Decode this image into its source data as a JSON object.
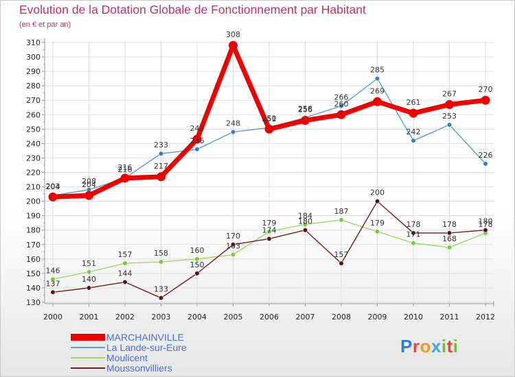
{
  "page": {
    "title": "Evolution de la Dotation Globale de Fonctionnement par Habitant",
    "subtitle": "(en € et par an)"
  },
  "logo": {
    "text": "Proxiti",
    "letter_colors": [
      "#2a7fd4",
      "#e8482f",
      "#f29a1b",
      "#3aa8e0",
      "#79b83a",
      "#e8482f",
      "#79b83a"
    ]
  },
  "chart_data": {
    "type": "line",
    "title": "Evolution de la Dotation Globale de Fonctionnement par Habitant",
    "subtitle": "(en € et par an)",
    "xlabel": "",
    "ylabel": "",
    "x": [
      "2000",
      "2001",
      "2002",
      "2003",
      "2004",
      "2005",
      "2006",
      "2007",
      "2008",
      "2009",
      "2010",
      "2011",
      "2012"
    ],
    "ylim": [
      130,
      310
    ],
    "yticks": [
      130,
      140,
      150,
      160,
      170,
      180,
      190,
      200,
      210,
      220,
      230,
      240,
      250,
      260,
      270,
      280,
      290,
      300,
      310
    ],
    "legend_position": "bottom-left",
    "series": [
      {
        "name": "La Lande-sur-Eure",
        "color": "#5b9bd5",
        "marker": "#2f7ec4",
        "weight": "thin",
        "values": [
          204,
          208,
          216,
          233,
          236,
          248,
          251,
          258,
          266,
          285,
          242,
          253,
          226
        ]
      },
      {
        "name": "Moulicent",
        "color": "#99db66",
        "marker": "#77c93b",
        "weight": "thin",
        "values": [
          146,
          151,
          157,
          158,
          160,
          163,
          179,
          184,
          187,
          179,
          171,
          168,
          178
        ]
      },
      {
        "name": "Moussonvilliers",
        "color": "#6e1e1e",
        "marker": "#5a1010",
        "weight": "thin",
        "values": [
          137,
          140,
          144,
          133,
          150,
          170,
          174,
          180,
          157,
          200,
          178,
          178,
          180
        ]
      },
      {
        "name": "MARCHAINVILLE",
        "color": "#ee0000",
        "marker": "#ee0000",
        "weight": "thick",
        "values": [
          203,
          204,
          216,
          217,
          243,
          308,
          250,
          256,
          260,
          269,
          261,
          267,
          270
        ]
      }
    ],
    "legend_order": [
      "MARCHAINVILLE",
      "La Lande-sur-Eure",
      "Moulicent",
      "Moussonvilliers"
    ]
  }
}
